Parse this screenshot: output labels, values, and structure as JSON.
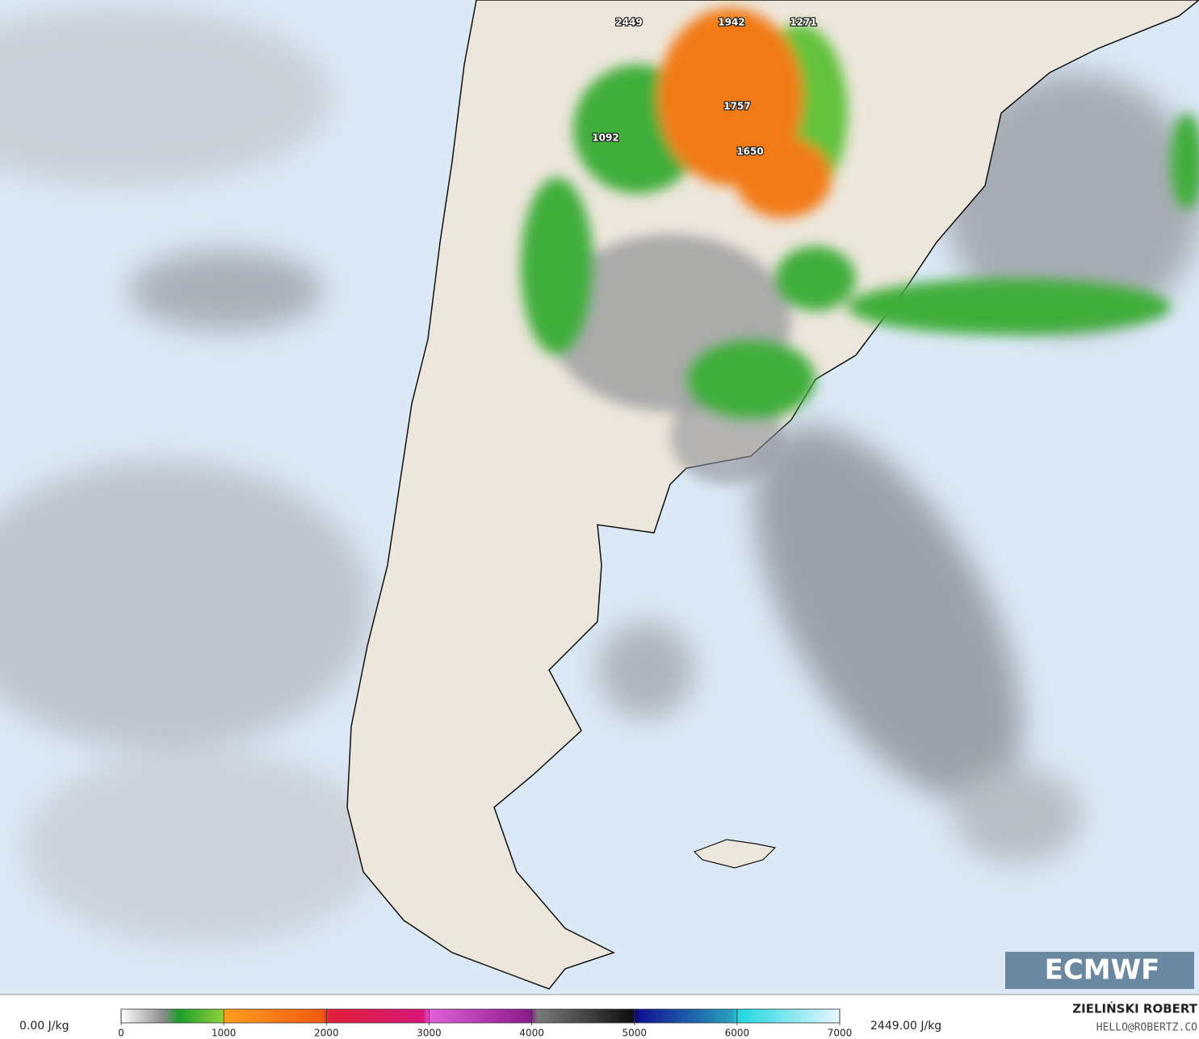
{
  "map_labels": [
    "2449",
    "1942",
    "1271",
    "1757",
    "1092",
    "1650"
  ],
  "logo": "ECMWF",
  "legend": {
    "min_label": "0.00 J/kg",
    "max_label": "2449.00 J/kg",
    "ticks": [
      0,
      1000,
      2000,
      3000,
      4000,
      5000,
      6000,
      7000
    ]
  },
  "credit": {
    "name": "ZIELIŃSKI ROBERT",
    "contact": "HELLO@ROBERTZ.CO"
  }
}
